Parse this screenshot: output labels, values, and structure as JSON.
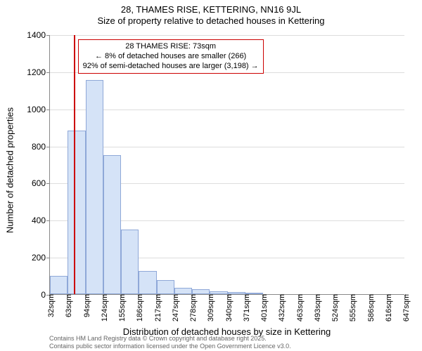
{
  "title": {
    "line1": "28, THAMES RISE, KETTERING, NN16 9JL",
    "line2": "Size of property relative to detached houses in Kettering"
  },
  "chart": {
    "type": "histogram",
    "background_color": "#ffffff",
    "grid_color": "#dddddd",
    "axis_color": "#888888",
    "bar_fill": "#d5e3f7",
    "bar_border": "#8fa8d8",
    "marker_line_color": "#cc0000",
    "info_box_border": "#cc0000",
    "info_box_bg": "#ffffff",
    "y": {
      "min": 0,
      "max": 1400,
      "tick_step": 200,
      "ticks": [
        0,
        200,
        400,
        600,
        800,
        1000,
        1200,
        1400
      ],
      "title": "Number of detached properties"
    },
    "x": {
      "ticks": [
        "32sqm",
        "63sqm",
        "94sqm",
        "124sqm",
        "155sqm",
        "186sqm",
        "217sqm",
        "247sqm",
        "278sqm",
        "309sqm",
        "340sqm",
        "371sqm",
        "401sqm",
        "432sqm",
        "463sqm",
        "493sqm",
        "524sqm",
        "555sqm",
        "586sqm",
        "616sqm",
        "647sqm"
      ],
      "title": "Distribution of detached houses by size in Kettering"
    },
    "bars": [
      100,
      880,
      1155,
      750,
      350,
      125,
      75,
      35,
      25,
      15,
      12,
      8,
      0,
      0,
      0,
      0,
      0,
      0,
      0,
      0
    ],
    "marker": {
      "tick_index_fraction": 1.33,
      "lines": [
        "28 THAMES RISE: 73sqm",
        "← 8% of detached houses are smaller (266)",
        "92% of semi-detached houses are larger (3,198) →"
      ]
    },
    "title_fontsize": 13,
    "axis_title_fontsize": 13,
    "tick_fontsize": 12,
    "xtick_fontsize": 11,
    "infobox_fontsize": 11
  },
  "footer": {
    "line1": "Contains HM Land Registry data © Crown copyright and database right 2025.",
    "line2": "Contains public sector information licensed under the Open Government Licence v3.0.",
    "color": "#666666"
  }
}
